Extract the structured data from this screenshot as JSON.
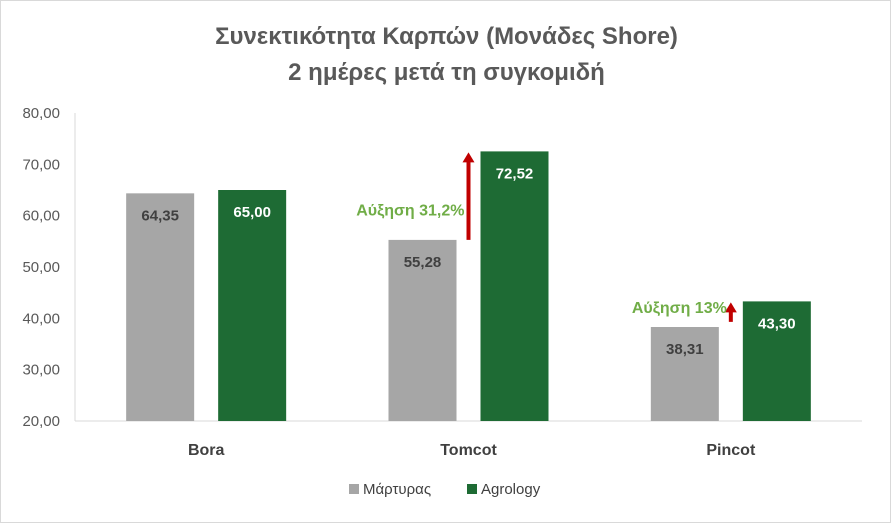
{
  "chart_data": {
    "type": "bar",
    "title": "Συνεκτικότητα Καρπών (Μονάδες Shore)",
    "subtitle": "2 ημέρες μετά τη συγκομιδή",
    "categories": [
      "Bora",
      "Tomcot",
      "Pincot"
    ],
    "series": [
      {
        "name": "Μάρτυρας",
        "color": "#a6a6a6",
        "values": [
          64.35,
          55.28,
          38.31
        ],
        "labels": [
          "64,35",
          "55,28",
          "38,31"
        ]
      },
      {
        "name": "Agrology",
        "color": "#1e6b34",
        "values": [
          65.0,
          72.52,
          43.3
        ],
        "labels": [
          "65,00",
          "72,52",
          "43,30"
        ]
      }
    ],
    "ylim": [
      20,
      80
    ],
    "yticks": [
      "20,00",
      "30,00",
      "40,00",
      "50,00",
      "60,00",
      "70,00",
      "80,00"
    ],
    "ytick_values": [
      20,
      30,
      40,
      50,
      60,
      70,
      80
    ],
    "grid": false,
    "legend": "bottom",
    "annotations": [
      {
        "category": "Tomcot",
        "text": "Αύξηση 31,2%",
        "color": "#70ad47",
        "arrow_color": "#c00000"
      },
      {
        "category": "Pincot",
        "text": "Αύξηση 13%",
        "color": "#70ad47",
        "arrow_color": "#c00000"
      }
    ]
  }
}
